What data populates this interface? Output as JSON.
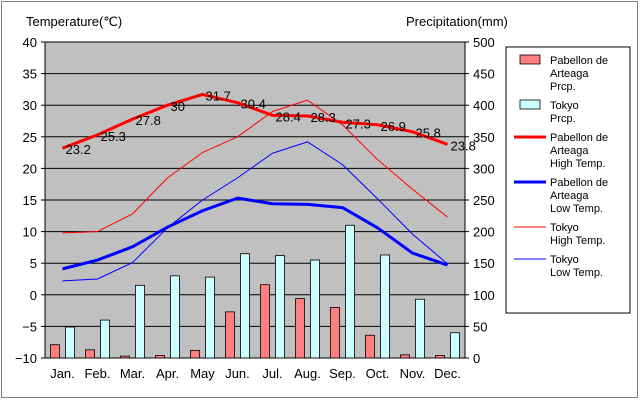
{
  "chart_data": {
    "type": "bar+line",
    "y_left_label": "Temperature(℃)",
    "y_right_label": "Precipitation(mm)",
    "y_left_range": [
      -10,
      40
    ],
    "y_left_ticks": [
      40,
      35,
      30,
      25,
      20,
      15,
      10,
      5,
      0,
      -5,
      -10
    ],
    "y_right_range": [
      0,
      500
    ],
    "y_right_ticks": [
      500,
      450,
      400,
      350,
      300,
      250,
      200,
      150,
      100,
      50,
      0
    ],
    "categories": [
      "Jan.",
      "Feb.",
      "Mar.",
      "Apr.",
      "May",
      "Jun.",
      "Jul.",
      "Aug.",
      "Sep.",
      "Oct.",
      "Nov.",
      "Dec."
    ],
    "grid": true,
    "legend_position": "right",
    "bar_series": [
      {
        "name": "Pabellon de Arteaga Prcp.",
        "axis": "right",
        "color": "#ff7f7f",
        "values": [
          21,
          13,
          3,
          4,
          12,
          73,
          116,
          94,
          80,
          36,
          5,
          4
        ]
      },
      {
        "name": "Tokyo Prcp.",
        "axis": "right",
        "color": "#ccffff",
        "values": [
          49,
          60,
          115,
          130,
          128,
          165,
          162,
          155,
          210,
          163,
          93,
          40
        ]
      }
    ],
    "line_series": [
      {
        "name": "Pabellon de Arteaga High Temp.",
        "axis": "left",
        "color": "#ff0000",
        "width": 3,
        "values": [
          23.2,
          25.3,
          27.8,
          30,
          31.7,
          30.4,
          28.4,
          28.3,
          27.3,
          26.9,
          25.8,
          23.8
        ],
        "labels": [
          "23.2",
          "25.3",
          "27.8",
          "30",
          "31.7",
          "30.4",
          "28.4",
          "28.3",
          "27.3",
          "26.9",
          "25.8",
          "23.8"
        ]
      },
      {
        "name": "Pabellon de Arteaga Low Temp.",
        "axis": "left",
        "color": "#0000ff",
        "width": 3,
        "values": [
          4.1,
          5.5,
          7.6,
          10.7,
          13.3,
          15.3,
          14.4,
          14.3,
          13.8,
          10.6,
          6.6,
          4.7
        ]
      },
      {
        "name": "Tokyo High Temp.",
        "axis": "left",
        "color": "#ff0000",
        "width": 1,
        "values": [
          9.8,
          10,
          12.8,
          18.5,
          22.5,
          25,
          29,
          30.8,
          26.9,
          21.4,
          16.7,
          12.3
        ]
      },
      {
        "name": "Tokyo Low Temp.",
        "axis": "left",
        "color": "#0000ff",
        "width": 1,
        "values": [
          2.2,
          2.5,
          5.1,
          10.6,
          15,
          18.5,
          22.4,
          24.2,
          20.6,
          15.2,
          9.6,
          4.9
        ]
      }
    ],
    "legend": [
      {
        "kind": "bar",
        "color": "#ff7f7f",
        "lines": [
          "Pabellon de",
          "Arteaga",
          "Prcp."
        ]
      },
      {
        "kind": "bar",
        "color": "#ccffff",
        "lines": [
          "Tokyo",
          "Prcp."
        ]
      },
      {
        "kind": "line",
        "color": "#ff0000",
        "width": 3,
        "lines": [
          "Pabellon de",
          "Arteaga",
          "High Temp."
        ]
      },
      {
        "kind": "line",
        "color": "#0000ff",
        "width": 3,
        "lines": [
          "Pabellon de",
          "Arteaga",
          "Low Temp."
        ]
      },
      {
        "kind": "line",
        "color": "#ff0000",
        "width": 1,
        "lines": [
          "Tokyo",
          "High Temp."
        ]
      },
      {
        "kind": "line",
        "color": "#0000ff",
        "width": 1,
        "lines": [
          "Tokyo",
          "Low Temp."
        ]
      }
    ],
    "colors": {
      "plot_background": "#c0c0c0",
      "gridline": "#000000",
      "frame": "#808080"
    }
  }
}
